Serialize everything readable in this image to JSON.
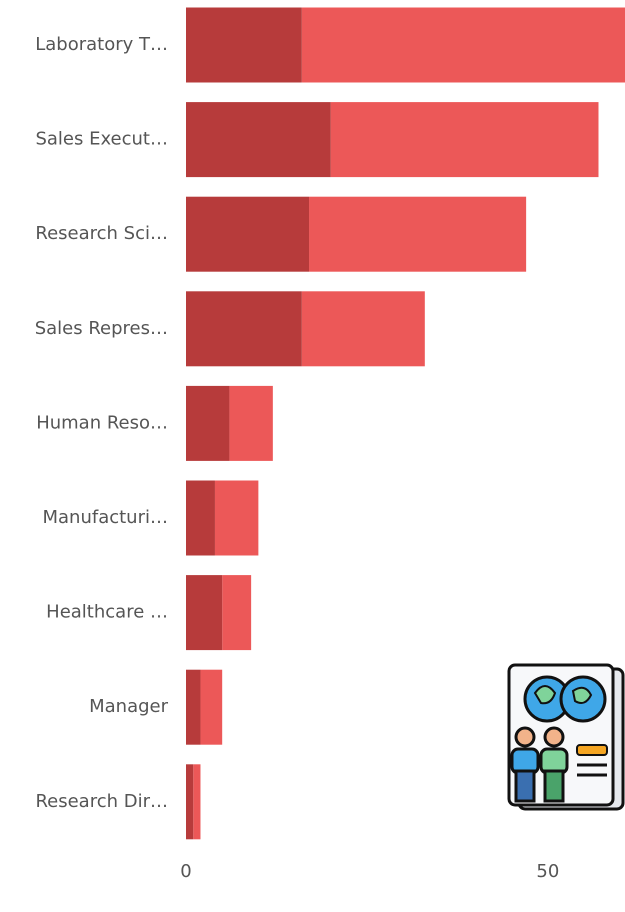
{
  "chart_data": {
    "type": "stacked-bar-horizontal",
    "categories": [
      "Laboratory T…",
      "Sales Execut…",
      "Research Sci…",
      "Sales Repres…",
      "Human Reso…",
      "Manufacturi…",
      "Healthcare …",
      "Manager",
      "Research Dir…"
    ],
    "series": [
      {
        "color": "#b73b3b",
        "values": [
          16,
          20,
          17,
          16,
          6,
          4,
          5,
          2,
          1
        ]
      },
      {
        "color": "#ec5858",
        "values": [
          45,
          37,
          30,
          17,
          6,
          6,
          4,
          3,
          1
        ]
      }
    ],
    "xlim": [
      0,
      60.8
    ],
    "xticks": [
      0,
      50
    ]
  }
}
